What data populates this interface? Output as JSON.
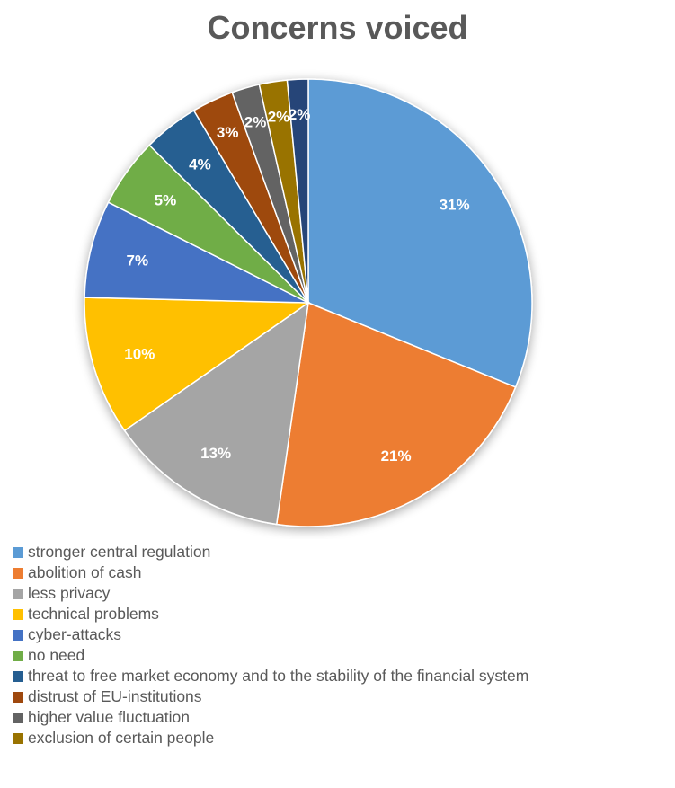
{
  "chart_data": {
    "type": "pie",
    "title": "Concerns voiced",
    "legend_position": "bottom",
    "slices": [
      {
        "name": "stronger central regulation",
        "value": 31,
        "label": "31%",
        "color": "#5B9BD5"
      },
      {
        "name": "abolition of cash",
        "value": 21,
        "label": "21%",
        "color": "#ED7D31"
      },
      {
        "name": "less privacy",
        "value": 13,
        "label": "13%",
        "color": "#A5A5A5"
      },
      {
        "name": "technical problems",
        "value": 10,
        "label": "10%",
        "color": "#FFC000"
      },
      {
        "name": "cyber-attacks",
        "value": 7,
        "label": "7%",
        "color": "#4472C4"
      },
      {
        "name": "no need",
        "value": 5,
        "label": "5%",
        "color": "#70AD47"
      },
      {
        "name": "threat to free market economy and to the stability of the financial system",
        "value": 4,
        "label": "4%",
        "color": "#255E91"
      },
      {
        "name": "distrust of EU-institutions",
        "value": 3,
        "label": "3%",
        "color": "#9E480E"
      },
      {
        "name": "higher value fluctuation",
        "value": 2,
        "label": "2%",
        "color": "#636363"
      },
      {
        "name": "exclusion of certain people",
        "value": 2,
        "label": "2%",
        "color": "#997300"
      },
      {
        "name": "",
        "value": 1.5,
        "label": "2%",
        "color": "#264478"
      }
    ]
  }
}
